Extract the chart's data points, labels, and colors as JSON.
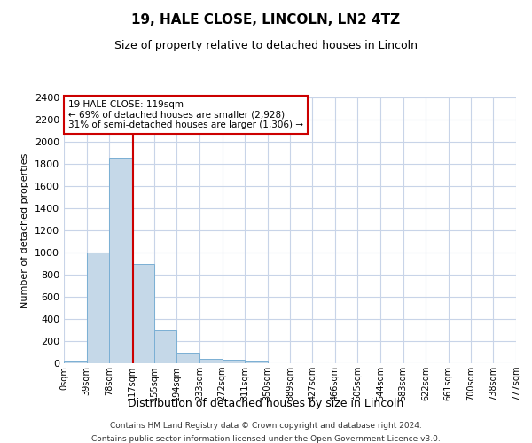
{
  "title_line1": "19, HALE CLOSE, LINCOLN, LN2 4TZ",
  "title_line2": "Size of property relative to detached houses in Lincoln",
  "xlabel": "Distribution of detached houses by size in Lincoln",
  "ylabel": "Number of detached properties",
  "bin_edges": [
    0,
    39,
    78,
    117,
    155,
    194,
    233,
    272,
    311,
    350,
    389,
    427,
    466,
    505,
    544,
    583,
    622,
    661,
    700,
    738,
    777
  ],
  "bin_values": [
    15,
    1000,
    1860,
    900,
    300,
    100,
    40,
    30,
    20,
    0,
    0,
    0,
    0,
    0,
    0,
    0,
    0,
    0,
    0,
    0
  ],
  "bar_color": "#C5D8E8",
  "bar_edge_color": "#7AAFD4",
  "property_size": 119,
  "ylim": [
    0,
    2400
  ],
  "yticks": [
    0,
    200,
    400,
    600,
    800,
    1000,
    1200,
    1400,
    1600,
    1800,
    2000,
    2200,
    2400
  ],
  "annotation_title": "19 HALE CLOSE: 119sqm",
  "annotation_line1": "← 69% of detached houses are smaller (2,928)",
  "annotation_line2": "31% of semi-detached houses are larger (1,306) →",
  "red_line_color": "#CC0000",
  "annotation_box_color": "#CC0000",
  "background_color": "#FFFFFF",
  "grid_color": "#C8D4E8",
  "footer_line1": "Contains HM Land Registry data © Crown copyright and database right 2024.",
  "footer_line2": "Contains public sector information licensed under the Open Government Licence v3.0."
}
